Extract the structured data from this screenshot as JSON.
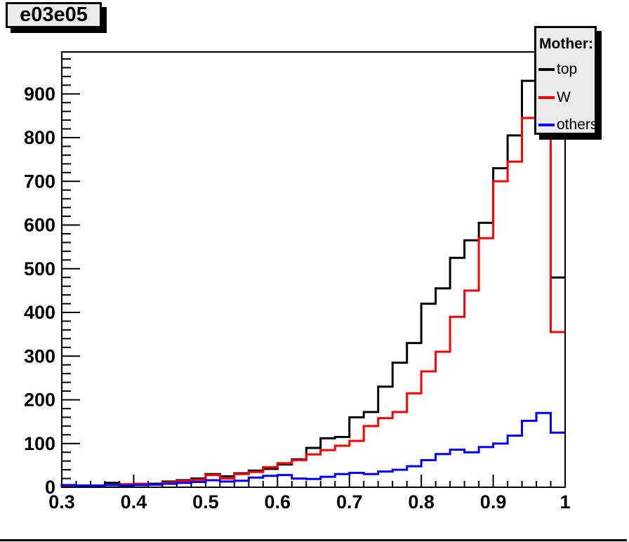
{
  "title": "e03e05",
  "legend": {
    "header": "Mother:",
    "entries": [
      {
        "label": "top",
        "color": "#000000"
      },
      {
        "label": "W",
        "color": "#ff0000"
      },
      {
        "label": "others",
        "color": "#0000ff"
      }
    ]
  },
  "colors": {
    "canvas_bg": "#ffffff",
    "box_fill": "#ebebeb",
    "box_border": "#000000",
    "box_shadow": "#000000",
    "frame": "#000000",
    "tick": "#000000",
    "label": "#000000"
  },
  "chart_data": {
    "type": "step-histogram",
    "title": "e03e05",
    "xlabel": "",
    "ylabel": "",
    "x_min": 0.3,
    "x_max": 1.0,
    "bin_width": 0.02,
    "y_min": 0,
    "y_max": 996,
    "grid": false,
    "legend_position": "top-right",
    "x_tick_values": [
      0.3,
      0.4,
      0.5,
      0.6,
      0.7,
      0.8,
      0.9,
      1.0
    ],
    "x_tick_labels": [
      "0.3",
      "0.4",
      "0.5",
      "0.6",
      "0.7",
      "0.8",
      "0.9",
      "1"
    ],
    "x_minor_step": 0.02,
    "y_tick_values": [
      0,
      100,
      200,
      300,
      400,
      500,
      600,
      700,
      800,
      900
    ],
    "y_tick_labels": [
      "0",
      "100",
      "200",
      "300",
      "400",
      "500",
      "600",
      "700",
      "800",
      "900"
    ],
    "y_minor_step": 20,
    "series": [
      {
        "name": "top",
        "color": "#000000",
        "values": [
          2,
          3,
          3,
          10,
          6,
          7,
          8,
          13,
          16,
          20,
          30,
          25,
          32,
          38,
          42,
          52,
          64,
          90,
          112,
          115,
          160,
          172,
          230,
          285,
          330,
          420,
          455,
          525,
          565,
          605,
          730,
          805,
          930,
          940,
          480
        ]
      },
      {
        "name": "W",
        "color": "#ff0000",
        "values": [
          1,
          2,
          2,
          5,
          7,
          8,
          6,
          11,
          14,
          17,
          28,
          20,
          30,
          35,
          46,
          55,
          62,
          75,
          85,
          95,
          106,
          140,
          158,
          172,
          215,
          265,
          310,
          390,
          450,
          570,
          700,
          745,
          845,
          842,
          355
        ]
      },
      {
        "name": "others",
        "color": "#0000ff",
        "values": [
          5,
          4,
          4,
          5,
          4,
          5,
          6,
          8,
          10,
          12,
          16,
          13,
          15,
          22,
          26,
          28,
          20,
          19,
          24,
          30,
          33,
          30,
          36,
          40,
          48,
          62,
          76,
          86,
          80,
          92,
          100,
          118,
          152,
          170,
          125
        ]
      }
    ]
  }
}
